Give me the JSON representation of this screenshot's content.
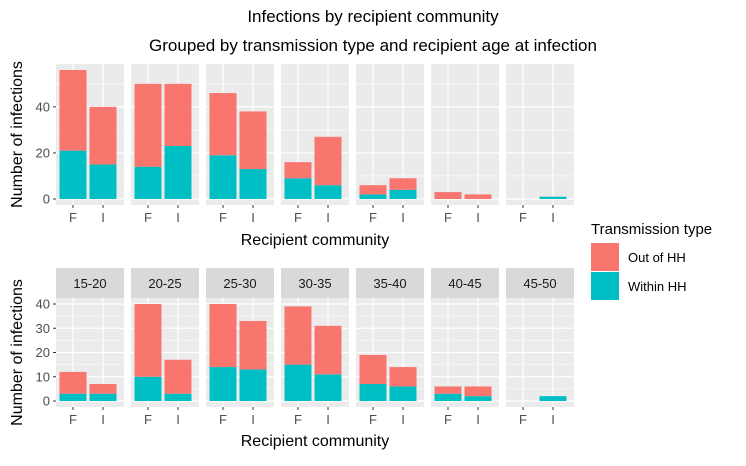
{
  "chart_data": {
    "type": "bar",
    "title": "Infections by recipient community",
    "subtitle": "Grouped by transmission type and recipient age at infection",
    "legend": {
      "title": "Transmission type",
      "position": "right",
      "entries": [
        {
          "name": "Out of HH",
          "color": "#F8766D"
        },
        {
          "name": "Within HH",
          "color": "#00BFC4"
        }
      ]
    },
    "facets": [
      "15-20",
      "20-25",
      "25-30",
      "30-35",
      "35-40",
      "40-45",
      "45-50"
    ],
    "categories": [
      "F",
      "I"
    ],
    "panels": [
      {
        "xlabel": "Recipient community",
        "ylabel": "Number of infections",
        "ylim": [
          0,
          56
        ],
        "yticks": [
          0,
          20,
          40
        ],
        "show_strips": false,
        "series": [
          {
            "name": "Within HH",
            "values": [
              [
                21,
                15
              ],
              [
                14,
                23
              ],
              [
                19,
                13
              ],
              [
                9,
                6
              ],
              [
                2,
                4
              ],
              [
                0,
                0
              ],
              [
                0,
                1
              ]
            ]
          },
          {
            "name": "Out of HH",
            "values": [
              [
                35,
                25
              ],
              [
                36,
                27
              ],
              [
                27,
                25
              ],
              [
                7,
                21
              ],
              [
                4,
                5
              ],
              [
                3,
                2
              ],
              [
                0,
                0
              ]
            ]
          }
        ]
      },
      {
        "xlabel": "Recipient community",
        "ylabel": "Number of infections",
        "ylim": [
          0,
          40
        ],
        "yticks": [
          0,
          10,
          20,
          30,
          40
        ],
        "show_strips": true,
        "series": [
          {
            "name": "Within HH",
            "values": [
              [
                3,
                3
              ],
              [
                10,
                3
              ],
              [
                14,
                13
              ],
              [
                15,
                11
              ],
              [
                7,
                6
              ],
              [
                3,
                2
              ],
              [
                0,
                2
              ]
            ]
          },
          {
            "name": "Out of HH",
            "values": [
              [
                9,
                4
              ],
              [
                30,
                14
              ],
              [
                26,
                20
              ],
              [
                24,
                20
              ],
              [
                12,
                8
              ],
              [
                3,
                4
              ],
              [
                0,
                0
              ]
            ]
          }
        ]
      }
    ],
    "grid": true,
    "panel_background": "#EBEBEB",
    "grid_color": "#FFFFFF",
    "strip_background": "#D9D9D9"
  }
}
